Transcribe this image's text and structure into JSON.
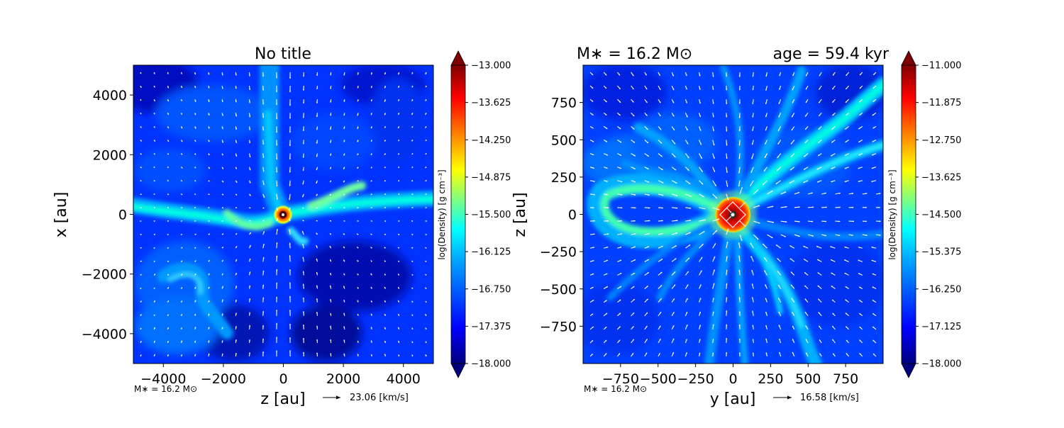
{
  "colors": {
    "jet": [
      "#00007f",
      "#0000ff",
      "#007fff",
      "#00ffff",
      "#7fff7f",
      "#ffff00",
      "#ff7f00",
      "#ff0000",
      "#7f0000"
    ],
    "arrow": "#ffffff"
  },
  "chart_data": [
    {
      "type": "heatmap",
      "title": "No title",
      "title_left": "",
      "title_right": "",
      "xlabel": "z [au]",
      "ylabel": "x [au]",
      "xlim": [
        -5000,
        5000
      ],
      "ylim": [
        -5000,
        5000
      ],
      "xticks": [
        -4000,
        -2000,
        0,
        2000,
        4000
      ],
      "yticks": [
        -4000,
        -2000,
        0,
        2000,
        4000
      ],
      "xtick_labels": [
        "−4000",
        "−2000",
        "0",
        "2000",
        "4000"
      ],
      "ytick_labels": [
        "−4000",
        "−2000",
        "0",
        "2000",
        "4000"
      ],
      "footnote": "M∗ = 16.2 M⊙",
      "velocity_key": "23.06 [km/s]",
      "colorbar": {
        "label": "log(Density) [g cm⁻³]",
        "min": -18.0,
        "max": -13.0,
        "ticks": [
          "−13.000",
          "−13.625",
          "−14.250",
          "−14.875",
          "−15.500",
          "−16.125",
          "−16.750",
          "−17.375",
          "−18.000"
        ]
      }
    },
    {
      "type": "heatmap",
      "title": "",
      "title_left": "M∗ = 16.2 M⊙",
      "title_right": "age = 59.4 kyr",
      "xlabel": "y [au]",
      "ylabel": "z [au]",
      "xlim": [
        -1000,
        1000
      ],
      "ylim": [
        -1000,
        1000
      ],
      "xticks": [
        -750,
        -500,
        -250,
        0,
        250,
        500,
        750
      ],
      "yticks": [
        -750,
        -500,
        -250,
        0,
        250,
        500,
        750
      ],
      "xtick_labels": [
        "−750",
        "−500",
        "−250",
        "0",
        "250",
        "500",
        "750"
      ],
      "ytick_labels": [
        "−750",
        "−500",
        "−250",
        "0",
        "250",
        "500",
        "750"
      ],
      "footnote": "M∗ = 16.2 M⊙",
      "velocity_key": "16.58 [km/s]",
      "colorbar": {
        "label": "log(Density) [g cm⁻³]",
        "min": -18.0,
        "max": -11.0,
        "ticks": [
          "−11.000",
          "−11.875",
          "−12.750",
          "−13.625",
          "−14.500",
          "−15.375",
          "−16.250",
          "−17.125",
          "−18.000"
        ]
      }
    }
  ]
}
